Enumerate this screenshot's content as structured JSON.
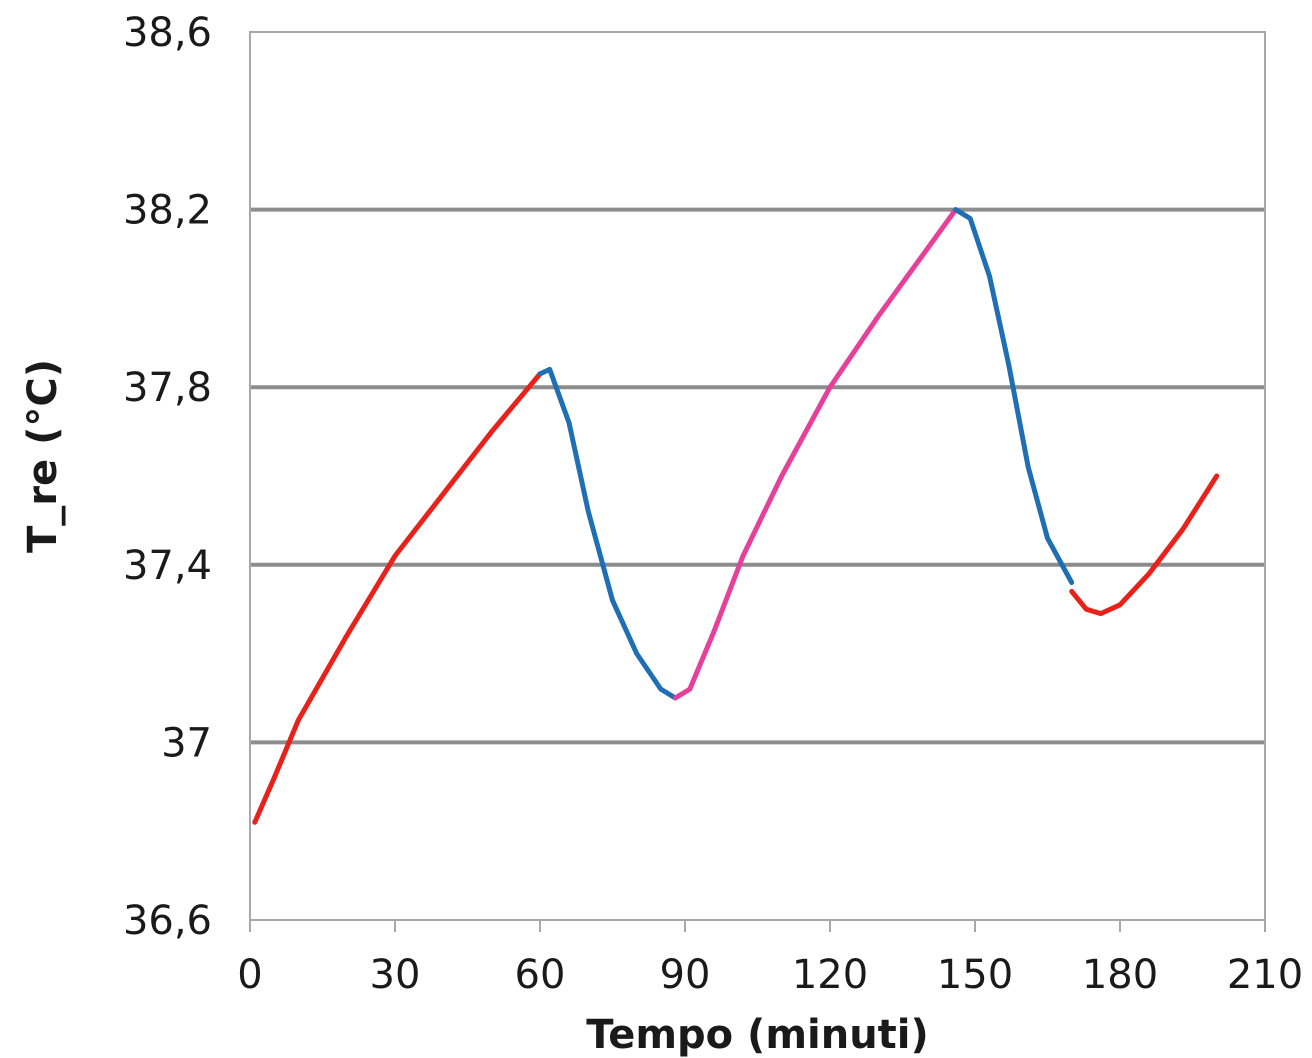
{
  "chart_data": {
    "type": "line",
    "xlabel": "Tempo (minuti)",
    "ylabel": "T_re (°C)",
    "xlim": [
      0,
      210
    ],
    "ylim": [
      36.6,
      38.6
    ],
    "xticks": [
      0,
      30,
      60,
      90,
      120,
      150,
      180,
      210
    ],
    "xtick_labels": [
      "0",
      "30",
      "60",
      "90",
      "120",
      "150",
      "180",
      "210"
    ],
    "yticks": [
      36.6,
      37,
      37.4,
      37.8,
      38.2,
      38.6
    ],
    "ytick_labels": [
      "36,6",
      "37",
      "37,4",
      "37,8",
      "38,2",
      "38,6"
    ],
    "grid": "horizontal",
    "legend": "none",
    "series": [
      {
        "color": "#e8211b",
        "points": [
          [
            1,
            36.82
          ],
          [
            5,
            36.92
          ],
          [
            10,
            37.05
          ],
          [
            20,
            37.24
          ],
          [
            30,
            37.42
          ],
          [
            40,
            37.56
          ],
          [
            50,
            37.7
          ],
          [
            60,
            37.83
          ]
        ]
      },
      {
        "color": "#1f6fb4",
        "points": [
          [
            60,
            37.83
          ],
          [
            62,
            37.84
          ],
          [
            66,
            37.72
          ],
          [
            70,
            37.52
          ],
          [
            75,
            37.32
          ],
          [
            80,
            37.2
          ],
          [
            85,
            37.12
          ],
          [
            88,
            37.1
          ]
        ]
      },
      {
        "color": "#e6409a",
        "points": [
          [
            88,
            37.1
          ],
          [
            91,
            37.12
          ],
          [
            96,
            37.25
          ],
          [
            102,
            37.42
          ],
          [
            110,
            37.6
          ],
          [
            120,
            37.8
          ],
          [
            130,
            37.96
          ],
          [
            140,
            38.11
          ],
          [
            146,
            38.2
          ]
        ]
      },
      {
        "color": "#1f6fb4",
        "points": [
          [
            146,
            38.2
          ],
          [
            149,
            38.18
          ],
          [
            153,
            38.05
          ],
          [
            157,
            37.85
          ],
          [
            161,
            37.62
          ],
          [
            165,
            37.46
          ],
          [
            168,
            37.4
          ],
          [
            170,
            37.36
          ]
        ]
      },
      {
        "color": "#e8211b",
        "points": [
          [
            170,
            37.34
          ],
          [
            173,
            37.3
          ],
          [
            176,
            37.29
          ],
          [
            180,
            37.31
          ],
          [
            186,
            37.38
          ],
          [
            193,
            37.48
          ],
          [
            200,
            37.6
          ]
        ]
      }
    ]
  }
}
